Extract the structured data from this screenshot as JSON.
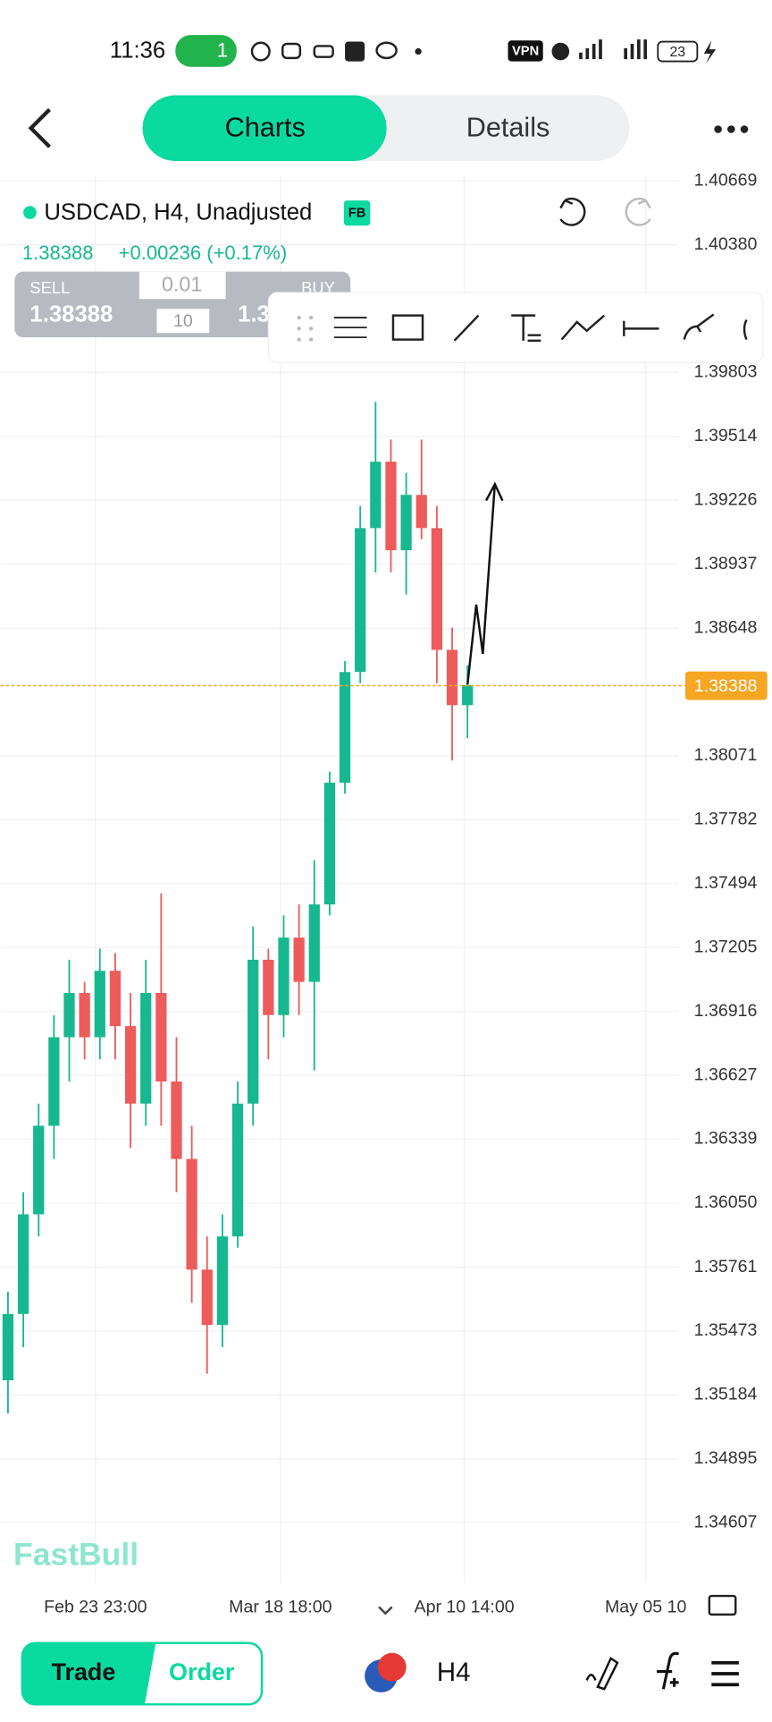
{
  "status_bar": {
    "time": "11:36",
    "hotspot_count": "1",
    "vpn": "VPN",
    "battery": "23"
  },
  "tabs": {
    "charts": "Charts",
    "details": "Details"
  },
  "header": {
    "symbol": "USDCAD, H4, Unadjusted",
    "badge": "FB",
    "price": "1.38388",
    "change": "+0.00236 (+0.17%)"
  },
  "trade_panel": {
    "sell_label": "SELL",
    "sell_price": "1.38388",
    "lot": "0.01",
    "qty": "10",
    "buy_label": "BUY",
    "buy_price": "1.3"
  },
  "watermark": "FastBull",
  "bottom_bar": {
    "trade": "Trade",
    "order": "Order",
    "timeframe": "H4"
  },
  "chart_data": {
    "type": "candlestick",
    "x": [
      0,
      1,
      2,
      3,
      4,
      5,
      6,
      7,
      8,
      9,
      10,
      11,
      12,
      13,
      14,
      15,
      16,
      17,
      18,
      19,
      20,
      21,
      22,
      23,
      24,
      25,
      26,
      27,
      28,
      29,
      30
    ],
    "open": [
      1.3525,
      1.3555,
      1.36,
      1.364,
      1.368,
      1.37,
      1.368,
      1.371,
      1.3685,
      1.365,
      1.37,
      1.366,
      1.3625,
      1.3575,
      1.355,
      1.359,
      1.365,
      1.3715,
      1.369,
      1.3725,
      1.3705,
      1.374,
      1.3795,
      1.3845,
      1.391,
      1.394,
      1.39,
      1.3925,
      1.391,
      1.3855,
      1.383
    ],
    "high": [
      1.3565,
      1.361,
      1.365,
      1.369,
      1.3715,
      1.3705,
      1.372,
      1.3718,
      1.37,
      1.3715,
      1.3745,
      1.368,
      1.364,
      1.359,
      1.36,
      1.366,
      1.373,
      1.372,
      1.3735,
      1.374,
      1.376,
      1.38,
      1.385,
      1.392,
      1.3967,
      1.395,
      1.3935,
      1.395,
      1.392,
      1.3865,
      1.3848
    ],
    "low": [
      1.351,
      1.354,
      1.359,
      1.3625,
      1.366,
      1.367,
      1.367,
      1.367,
      1.363,
      1.364,
      1.364,
      1.361,
      1.356,
      1.3528,
      1.354,
      1.3585,
      1.364,
      1.367,
      1.368,
      1.369,
      1.3665,
      1.3735,
      1.379,
      1.384,
      1.389,
      1.389,
      1.388,
      1.3905,
      1.384,
      1.3805,
      1.3815
    ],
    "close": [
      1.3555,
      1.36,
      1.364,
      1.368,
      1.37,
      1.368,
      1.371,
      1.3685,
      1.365,
      1.37,
      1.366,
      1.3625,
      1.3575,
      1.355,
      1.359,
      1.365,
      1.3715,
      1.369,
      1.3725,
      1.3705,
      1.374,
      1.3795,
      1.3845,
      1.391,
      1.394,
      1.39,
      1.3925,
      1.391,
      1.3855,
      1.383,
      1.3839
    ],
    "up_color": "#17b890",
    "down_color": "#ee5b5b",
    "last_price": {
      "value": 1.38388,
      "label": "1.38388"
    },
    "last_price_color": "#f5a623",
    "ylim": [
      1.3436,
      1.40694
    ],
    "yticks": [
      1.40669,
      {
        "value": 1.4038,
        "label": "1.40380"
      },
      1.39803,
      1.39514,
      1.39226,
      1.38937,
      1.38648,
      1.38071,
      1.37782,
      1.37494,
      1.37205,
      1.36916,
      1.36627,
      1.36339,
      {
        "value": 1.3605,
        "label": "1.36050"
      },
      1.35761,
      1.35473,
      1.35184,
      1.34895,
      1.34607
    ],
    "xlim": [
      -0.5,
      43.79
    ],
    "xticks": [
      {
        "value": 5.71,
        "label": "Feb 23 23:00"
      },
      {
        "value": 17.79,
        "label": "Mar 18 18:00"
      },
      {
        "value": 29.79,
        "label": "Apr 10 14:00"
      },
      {
        "value": 41.64,
        "label": "May 05 10"
      }
    ],
    "grid": true
  }
}
